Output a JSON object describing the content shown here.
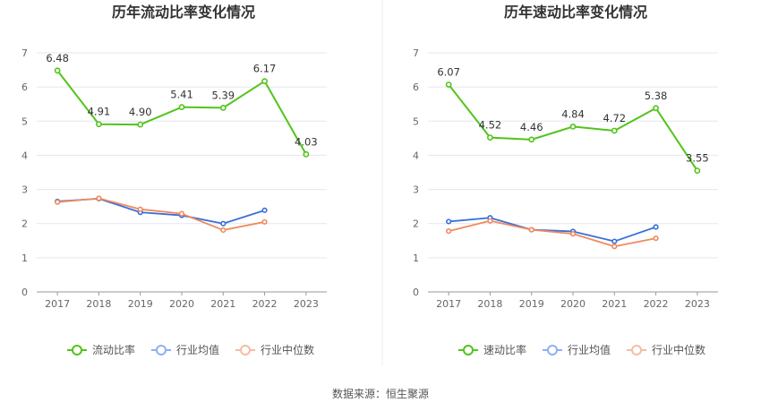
{
  "colors": {
    "main": "#52c41a",
    "industry_avg": "#3a6fd8",
    "industry_median": "#f08a5d",
    "legend_avg": "#8fb0f0",
    "legend_median": "#f7bba4",
    "grid": "#e4e7ef",
    "axis": "#999999"
  },
  "footer": {
    "source": "数据来源：恒生聚源"
  },
  "chart_data": [
    {
      "type": "line",
      "title": "历年流动比率变化情况",
      "categories": [
        "2017",
        "2018",
        "2019",
        "2020",
        "2021",
        "2022",
        "2023"
      ],
      "ylim": [
        0,
        7
      ],
      "yticks": [
        "0",
        "1",
        "2",
        "3",
        "4",
        "5",
        "6",
        "7"
      ],
      "grid": true,
      "legend_position": "bottom",
      "series": [
        {
          "name": "流动比率",
          "values": [
            6.48,
            4.91,
            4.9,
            5.41,
            5.39,
            6.17,
            4.03
          ],
          "labels": [
            "6.48",
            "4.91",
            "4.90",
            "5.41",
            "5.39",
            "6.17",
            "4.03"
          ]
        },
        {
          "name": "行业均值",
          "values": [
            2.65,
            2.73,
            2.33,
            2.24,
            2.0,
            2.39,
            null
          ]
        },
        {
          "name": "行业中位数",
          "values": [
            2.63,
            2.74,
            2.42,
            2.29,
            1.81,
            2.05,
            null
          ]
        }
      ]
    },
    {
      "type": "line",
      "title": "历年速动比率变化情况",
      "categories": [
        "2017",
        "2018",
        "2019",
        "2020",
        "2021",
        "2022",
        "2023"
      ],
      "ylim": [
        0,
        7
      ],
      "yticks": [
        "0",
        "1",
        "2",
        "3",
        "4",
        "5",
        "6",
        "7"
      ],
      "grid": true,
      "legend_position": "bottom",
      "series": [
        {
          "name": "速动比率",
          "values": [
            6.07,
            4.52,
            4.46,
            4.84,
            4.72,
            5.38,
            3.55
          ],
          "labels": [
            "6.07",
            "4.52",
            "4.46",
            "4.84",
            "4.72",
            "5.38",
            "3.55"
          ]
        },
        {
          "name": "行业均值",
          "values": [
            2.06,
            2.17,
            1.82,
            1.77,
            1.48,
            1.9,
            null
          ]
        },
        {
          "name": "行业中位数",
          "values": [
            1.78,
            2.08,
            1.82,
            1.7,
            1.33,
            1.57,
            null
          ]
        }
      ]
    }
  ]
}
